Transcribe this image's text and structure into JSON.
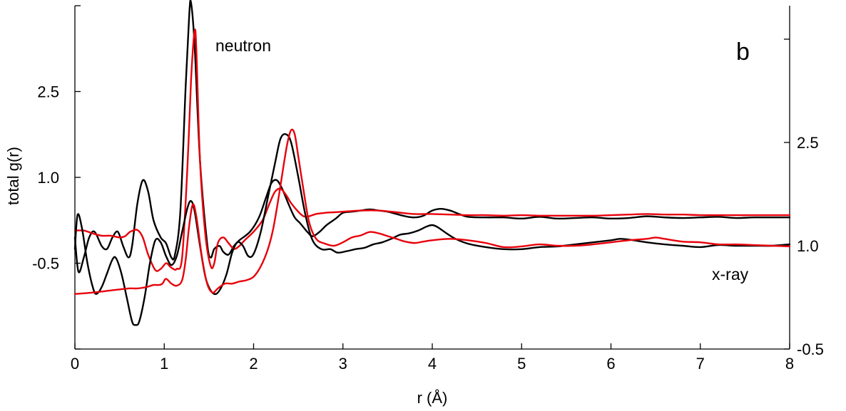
{
  "chart_data": {
    "type": "line",
    "panel_label": "b",
    "xlabel": "r (Å)",
    "ylabel_left": "total g(r)",
    "ylabel_right": "",
    "xlim": [
      0,
      8
    ],
    "x_ticks": [
      0,
      1,
      2,
      3,
      4,
      5,
      6,
      7,
      8
    ],
    "x_tick_labels": [
      "0",
      "1",
      "2",
      "3",
      "4",
      "5",
      "6",
      "7",
      "8"
    ],
    "left_axis": {
      "ylim": [
        -2.0,
        4.0
      ],
      "ticks": [
        -2.0,
        -0.5,
        1.0,
        2.5,
        4.0
      ],
      "tick_labels": [
        "",
        "-0.5",
        "1.0",
        "2.5",
        ""
      ]
    },
    "right_axis": {
      "ylim": [
        -0.5,
        4.0
      ],
      "ticks": [
        -0.5,
        1.0,
        2.5,
        4.0
      ],
      "tick_labels": [
        "-0.5",
        "1.0",
        "2.5",
        ""
      ]
    },
    "annotations": {
      "neutron": "neutron",
      "xray": "x-ray"
    },
    "colors": {
      "black": "#000000",
      "red": "#e8000b"
    },
    "series": [
      {
        "group": "neutron",
        "axis": "left",
        "color": "#000000",
        "points": [
          [
            0,
            -0.05
          ],
          [
            0.04,
            -0.65
          ],
          [
            0.1,
            -0.4
          ],
          [
            0.16,
            -0.05
          ],
          [
            0.22,
            0.05
          ],
          [
            0.3,
            -0.2
          ],
          [
            0.36,
            -0.25
          ],
          [
            0.42,
            -0.05
          ],
          [
            0.48,
            0.05
          ],
          [
            0.54,
            -0.2
          ],
          [
            0.6,
            -0.4
          ],
          [
            0.64,
            -0.2
          ],
          [
            0.7,
            0.55
          ],
          [
            0.76,
            0.95
          ],
          [
            0.82,
            0.75
          ],
          [
            0.88,
            0.25
          ],
          [
            0.96,
            -0.05
          ],
          [
            1.02,
            -0.15
          ],
          [
            1.08,
            -0.4
          ],
          [
            1.12,
            -0.35
          ],
          [
            1.18,
            0.4
          ],
          [
            1.24,
            2.6
          ],
          [
            1.28,
            3.85
          ],
          [
            1.3,
            4.05
          ],
          [
            1.34,
            3.3
          ],
          [
            1.4,
            1.3
          ],
          [
            1.48,
            -0.15
          ],
          [
            1.52,
            -0.4
          ],
          [
            1.56,
            -0.25
          ],
          [
            1.62,
            -0.2
          ],
          [
            1.66,
            -0.3
          ],
          [
            1.72,
            -0.35
          ],
          [
            1.78,
            -0.2
          ],
          [
            1.84,
            -0.1
          ],
          [
            1.96,
            0.05
          ],
          [
            2.06,
            0.3
          ],
          [
            2.14,
            0.65
          ],
          [
            2.2,
            0.9
          ],
          [
            2.26,
            0.95
          ],
          [
            2.32,
            0.8
          ],
          [
            2.4,
            0.5
          ],
          [
            2.46,
            0.3
          ],
          [
            2.52,
            0.2
          ],
          [
            2.6,
            0.05
          ],
          [
            2.66,
            -0.03
          ],
          [
            2.74,
            0.05
          ],
          [
            2.82,
            0.17
          ],
          [
            2.92,
            0.28
          ],
          [
            3.0,
            0.38
          ],
          [
            3.1,
            0.4
          ],
          [
            3.2,
            0.42
          ],
          [
            3.3,
            0.44
          ],
          [
            3.4,
            0.42
          ],
          [
            3.5,
            0.4
          ],
          [
            3.6,
            0.36
          ],
          [
            3.7,
            0.32
          ],
          [
            3.8,
            0.3
          ],
          [
            3.9,
            0.33
          ],
          [
            4.0,
            0.42
          ],
          [
            4.1,
            0.45
          ],
          [
            4.2,
            0.42
          ],
          [
            4.3,
            0.36
          ],
          [
            4.4,
            0.31
          ],
          [
            4.6,
            0.3
          ],
          [
            4.8,
            0.3
          ],
          [
            5.0,
            0.28
          ],
          [
            5.2,
            0.31
          ],
          [
            5.4,
            0.28
          ],
          [
            5.6,
            0.29
          ],
          [
            5.8,
            0.3
          ],
          [
            6.0,
            0.28
          ],
          [
            6.2,
            0.29
          ],
          [
            6.4,
            0.32
          ],
          [
            6.6,
            0.3
          ],
          [
            6.8,
            0.29
          ],
          [
            7.0,
            0.3
          ],
          [
            7.2,
            0.31
          ],
          [
            7.4,
            0.29
          ],
          [
            7.6,
            0.3
          ],
          [
            7.8,
            0.3
          ],
          [
            8.0,
            0.3
          ]
        ]
      },
      {
        "group": "neutron",
        "axis": "left",
        "color": "#e8000b",
        "points": [
          [
            0,
            0.07
          ],
          [
            0.1,
            0.07
          ],
          [
            0.2,
            0.02
          ],
          [
            0.3,
            -0.02
          ],
          [
            0.4,
            -0.02
          ],
          [
            0.5,
            -0.05
          ],
          [
            0.56,
            -0.03
          ],
          [
            0.62,
            0.05
          ],
          [
            0.7,
            0.08
          ],
          [
            0.76,
            -0.05
          ],
          [
            0.82,
            -0.35
          ],
          [
            0.9,
            -0.62
          ],
          [
            0.96,
            -0.6
          ],
          [
            1.02,
            -0.5
          ],
          [
            1.06,
            -0.55
          ],
          [
            1.1,
            -0.6
          ],
          [
            1.14,
            -0.6
          ],
          [
            1.2,
            -0.4
          ],
          [
            1.26,
            1.2
          ],
          [
            1.3,
            2.7
          ],
          [
            1.34,
            3.55
          ],
          [
            1.36,
            3.2
          ],
          [
            1.4,
            1.3
          ],
          [
            1.46,
            0.0
          ],
          [
            1.52,
            -0.55
          ],
          [
            1.56,
            -0.5
          ],
          [
            1.6,
            -0.15
          ],
          [
            1.66,
            -0.05
          ],
          [
            1.72,
            -0.15
          ],
          [
            1.78,
            -0.25
          ],
          [
            1.84,
            -0.2
          ],
          [
            1.9,
            -0.1
          ],
          [
            2.0,
            0.05
          ],
          [
            2.1,
            0.25
          ],
          [
            2.18,
            0.55
          ],
          [
            2.24,
            0.75
          ],
          [
            2.3,
            0.8
          ],
          [
            2.36,
            0.7
          ],
          [
            2.42,
            0.55
          ],
          [
            2.5,
            0.4
          ],
          [
            2.56,
            0.32
          ],
          [
            2.62,
            0.32
          ],
          [
            2.7,
            0.36
          ],
          [
            2.8,
            0.38
          ],
          [
            2.9,
            0.39
          ],
          [
            3.0,
            0.4
          ],
          [
            3.2,
            0.42
          ],
          [
            3.4,
            0.42
          ],
          [
            3.6,
            0.39
          ],
          [
            3.8,
            0.36
          ],
          [
            4.0,
            0.36
          ],
          [
            4.2,
            0.35
          ],
          [
            4.4,
            0.34
          ],
          [
            4.6,
            0.34
          ],
          [
            4.8,
            0.33
          ],
          [
            5.0,
            0.34
          ],
          [
            5.2,
            0.33
          ],
          [
            5.4,
            0.33
          ],
          [
            5.6,
            0.33
          ],
          [
            5.8,
            0.33
          ],
          [
            6.0,
            0.34
          ],
          [
            6.2,
            0.35
          ],
          [
            6.4,
            0.36
          ],
          [
            6.6,
            0.35
          ],
          [
            6.8,
            0.35
          ],
          [
            7.0,
            0.34
          ],
          [
            7.2,
            0.34
          ],
          [
            7.4,
            0.34
          ],
          [
            7.6,
            0.34
          ],
          [
            7.8,
            0.34
          ],
          [
            8.0,
            0.34
          ]
        ]
      },
      {
        "group": "x-ray",
        "axis": "right",
        "color": "#000000",
        "points": [
          [
            0,
            0.95
          ],
          [
            0.03,
            1.45
          ],
          [
            0.08,
            1.25
          ],
          [
            0.14,
            0.75
          ],
          [
            0.2,
            0.4
          ],
          [
            0.24,
            0.3
          ],
          [
            0.3,
            0.4
          ],
          [
            0.36,
            0.6
          ],
          [
            0.42,
            0.8
          ],
          [
            0.46,
            0.82
          ],
          [
            0.52,
            0.6
          ],
          [
            0.58,
            0.25
          ],
          [
            0.64,
            -0.1
          ],
          [
            0.68,
            -0.15
          ],
          [
            0.72,
            -0.1
          ],
          [
            0.78,
            0.25
          ],
          [
            0.84,
            0.75
          ],
          [
            0.9,
            1.08
          ],
          [
            0.96,
            1.05
          ],
          [
            1.02,
            0.85
          ],
          [
            1.08,
            0.72
          ],
          [
            1.14,
            0.85
          ],
          [
            1.2,
            1.2
          ],
          [
            1.26,
            1.55
          ],
          [
            1.3,
            1.65
          ],
          [
            1.34,
            1.5
          ],
          [
            1.4,
            1.0
          ],
          [
            1.46,
            0.55
          ],
          [
            1.52,
            0.35
          ],
          [
            1.58,
            0.3
          ],
          [
            1.64,
            0.4
          ],
          [
            1.7,
            0.6
          ],
          [
            1.76,
            0.9
          ],
          [
            1.82,
            1.05
          ],
          [
            1.88,
            1.0
          ],
          [
            1.94,
            0.85
          ],
          [
            2.0,
            0.88
          ],
          [
            2.08,
            1.2
          ],
          [
            2.16,
            1.7
          ],
          [
            2.24,
            2.2
          ],
          [
            2.3,
            2.55
          ],
          [
            2.36,
            2.62
          ],
          [
            2.42,
            2.5
          ],
          [
            2.5,
            2.0
          ],
          [
            2.58,
            1.45
          ],
          [
            2.66,
            1.08
          ],
          [
            2.76,
            0.95
          ],
          [
            2.86,
            0.95
          ],
          [
            2.94,
            0.9
          ],
          [
            3.04,
            0.92
          ],
          [
            3.14,
            0.95
          ],
          [
            3.24,
            0.97
          ],
          [
            3.34,
            1.02
          ],
          [
            3.44,
            1.05
          ],
          [
            3.54,
            1.1
          ],
          [
            3.64,
            1.16
          ],
          [
            3.74,
            1.18
          ],
          [
            3.84,
            1.22
          ],
          [
            3.94,
            1.28
          ],
          [
            4.0,
            1.3
          ],
          [
            4.06,
            1.27
          ],
          [
            4.16,
            1.18
          ],
          [
            4.26,
            1.1
          ],
          [
            4.4,
            1.03
          ],
          [
            4.6,
            0.98
          ],
          [
            4.8,
            0.95
          ],
          [
            5.0,
            0.95
          ],
          [
            5.2,
            0.98
          ],
          [
            5.4,
            0.99
          ],
          [
            5.6,
            1.02
          ],
          [
            5.8,
            1.05
          ],
          [
            6.0,
            1.08
          ],
          [
            6.1,
            1.1
          ],
          [
            6.2,
            1.09
          ],
          [
            6.4,
            1.05
          ],
          [
            6.6,
            1.02
          ],
          [
            6.8,
            1.0
          ],
          [
            7.0,
            0.98
          ],
          [
            7.2,
            1.01
          ],
          [
            7.4,
            1.0
          ],
          [
            7.6,
            1.0
          ],
          [
            7.8,
            1.0
          ],
          [
            8.0,
            1.02
          ]
        ]
      },
      {
        "group": "x-ray",
        "axis": "right",
        "color": "#e8000b",
        "points": [
          [
            0,
            0.3
          ],
          [
            0.2,
            0.32
          ],
          [
            0.4,
            0.35
          ],
          [
            0.6,
            0.38
          ],
          [
            0.7,
            0.38
          ],
          [
            0.8,
            0.4
          ],
          [
            0.88,
            0.43
          ],
          [
            0.94,
            0.43
          ],
          [
            0.98,
            0.45
          ],
          [
            1.02,
            0.52
          ],
          [
            1.08,
            0.45
          ],
          [
            1.14,
            0.42
          ],
          [
            1.2,
            0.5
          ],
          [
            1.24,
            0.8
          ],
          [
            1.28,
            1.3
          ],
          [
            1.32,
            1.6
          ],
          [
            1.36,
            1.42
          ],
          [
            1.42,
            0.85
          ],
          [
            1.48,
            0.45
          ],
          [
            1.54,
            0.32
          ],
          [
            1.6,
            0.38
          ],
          [
            1.68,
            0.45
          ],
          [
            1.76,
            0.45
          ],
          [
            1.84,
            0.48
          ],
          [
            1.92,
            0.5
          ],
          [
            2.0,
            0.55
          ],
          [
            2.08,
            0.7
          ],
          [
            2.16,
            0.95
          ],
          [
            2.22,
            1.25
          ],
          [
            2.28,
            1.7
          ],
          [
            2.34,
            2.2
          ],
          [
            2.38,
            2.5
          ],
          [
            2.42,
            2.68
          ],
          [
            2.46,
            2.62
          ],
          [
            2.5,
            2.3
          ],
          [
            2.56,
            1.8
          ],
          [
            2.62,
            1.35
          ],
          [
            2.7,
            1.1
          ],
          [
            2.8,
            1.03
          ],
          [
            2.9,
            1.0
          ],
          [
            3.0,
            1.05
          ],
          [
            3.1,
            1.12
          ],
          [
            3.2,
            1.15
          ],
          [
            3.3,
            1.2
          ],
          [
            3.4,
            1.18
          ],
          [
            3.5,
            1.14
          ],
          [
            3.6,
            1.1
          ],
          [
            3.7,
            1.06
          ],
          [
            3.8,
            1.04
          ],
          [
            3.9,
            1.06
          ],
          [
            4.0,
            1.08
          ],
          [
            4.2,
            1.1
          ],
          [
            4.4,
            1.08
          ],
          [
            4.6,
            1.04
          ],
          [
            4.8,
            0.98
          ],
          [
            5.0,
            0.99
          ],
          [
            5.2,
            1.02
          ],
          [
            5.4,
            1.0
          ],
          [
            5.6,
            1.0
          ],
          [
            5.8,
            1.02
          ],
          [
            6.0,
            1.05
          ],
          [
            6.2,
            1.08
          ],
          [
            6.4,
            1.1
          ],
          [
            6.5,
            1.12
          ],
          [
            6.6,
            1.1
          ],
          [
            6.8,
            1.06
          ],
          [
            7.0,
            1.05
          ],
          [
            7.2,
            1.02
          ],
          [
            7.4,
            1.02
          ],
          [
            7.6,
            1.01
          ],
          [
            7.8,
            1.0
          ],
          [
            8.0,
            0.99
          ]
        ]
      }
    ]
  }
}
